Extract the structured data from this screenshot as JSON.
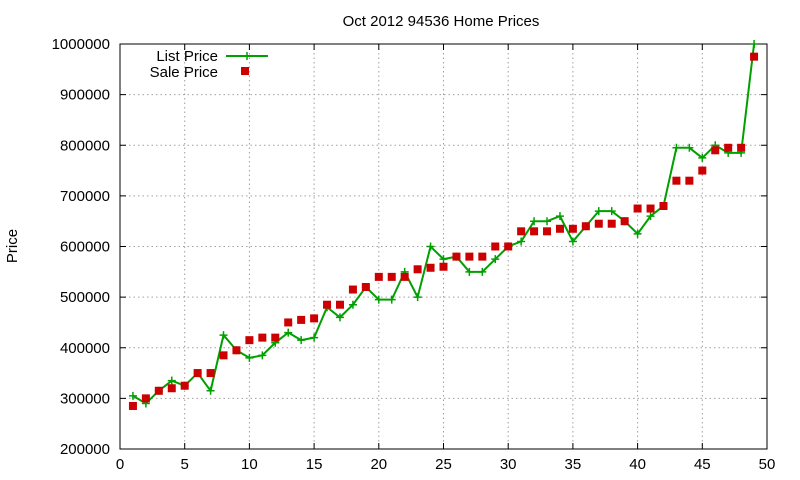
{
  "chart_data": {
    "type": "line",
    "title": "Oct 2012 94536 Home Prices",
    "xlabel": "",
    "ylabel": "Price",
    "xlim": [
      0,
      50
    ],
    "ylim": [
      200000,
      1000000
    ],
    "xticks": [
      0,
      5,
      10,
      15,
      20,
      25,
      30,
      35,
      40,
      45,
      50
    ],
    "yticks": [
      200000,
      300000,
      400000,
      500000,
      600000,
      700000,
      800000,
      900000,
      1000000
    ],
    "grid": true,
    "legend_position": "top-left",
    "series": [
      {
        "name": "List Price",
        "style": "line-with-plus-markers",
        "color": "#00a000",
        "x": [
          1,
          2,
          3,
          4,
          5,
          6,
          7,
          8,
          9,
          10,
          11,
          12,
          13,
          14,
          15,
          16,
          17,
          18,
          19,
          20,
          21,
          22,
          23,
          24,
          25,
          26,
          27,
          28,
          29,
          30,
          31,
          32,
          33,
          34,
          35,
          36,
          37,
          38,
          39,
          40,
          41,
          42,
          43,
          44,
          45,
          46,
          47,
          48,
          49
        ],
        "y": [
          305000,
          290000,
          315000,
          335000,
          325000,
          350000,
          315000,
          425000,
          395000,
          380000,
          385000,
          410000,
          430000,
          415000,
          420000,
          480000,
          460000,
          485000,
          520000,
          495000,
          495000,
          550000,
          500000,
          600000,
          575000,
          580000,
          550000,
          550000,
          575000,
          600000,
          610000,
          650000,
          650000,
          660000,
          610000,
          640000,
          670000,
          670000,
          650000,
          625000,
          660000,
          680000,
          795000,
          795000,
          775000,
          800000,
          785000,
          785000,
          1000000
        ]
      },
      {
        "name": "Sale Price",
        "style": "square-markers",
        "color": "#cc0000",
        "x": [
          1,
          2,
          3,
          4,
          5,
          6,
          7,
          8,
          9,
          10,
          11,
          12,
          13,
          14,
          15,
          16,
          17,
          18,
          19,
          20,
          21,
          22,
          23,
          24,
          25,
          26,
          27,
          28,
          29,
          30,
          31,
          32,
          33,
          34,
          35,
          36,
          37,
          38,
          39,
          40,
          41,
          42,
          43,
          44,
          45,
          46,
          47,
          48,
          49
        ],
        "y": [
          285000,
          300000,
          315000,
          320000,
          325000,
          350000,
          350000,
          385000,
          395000,
          415000,
          420000,
          420000,
          450000,
          455000,
          458000,
          485000,
          485000,
          515000,
          520000,
          540000,
          540000,
          540000,
          555000,
          558000,
          560000,
          580000,
          580000,
          580000,
          600000,
          600000,
          630000,
          630000,
          630000,
          635000,
          635000,
          640000,
          645000,
          645000,
          650000,
          675000,
          675000,
          680000,
          730000,
          730000,
          750000,
          790000,
          795000,
          795000,
          975000
        ]
      }
    ]
  }
}
